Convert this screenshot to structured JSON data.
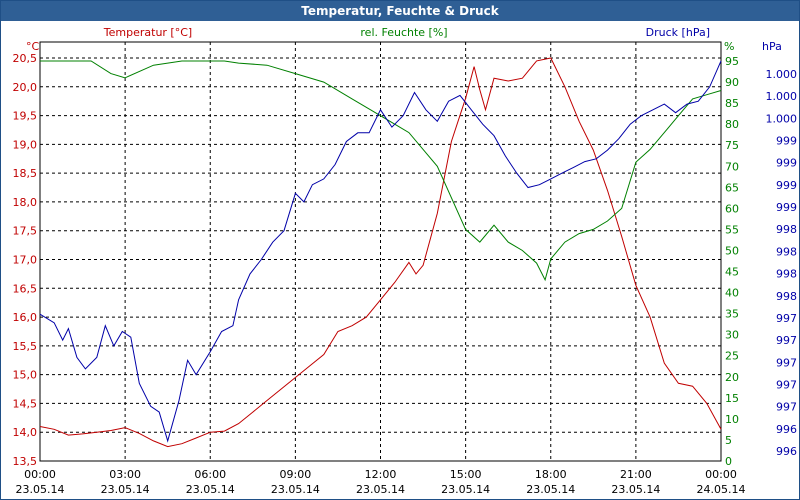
{
  "window": {
    "title": "Temperatur, Feuchte & Druck"
  },
  "colors": {
    "temperature": "#c00000",
    "humidity": "#008000",
    "pressure": "#0000a8",
    "title_bar": "#2f5f95"
  },
  "chart_data": {
    "type": "line",
    "title": "Temperatur, Feuchte & Druck",
    "grid": true,
    "x_ticks": [
      {
        "time": "00:00",
        "date": "23.05.14"
      },
      {
        "time": "03:00",
        "date": "23.05.14"
      },
      {
        "time": "06:00",
        "date": "23.05.14"
      },
      {
        "time": "09:00",
        "date": "23.05.14"
      },
      {
        "time": "12:00",
        "date": "23.05.14"
      },
      {
        "time": "15:00",
        "date": "23.05.14"
      },
      {
        "time": "18:00",
        "date": "23.05.14"
      },
      {
        "time": "21:00",
        "date": "23.05.14"
      },
      {
        "time": "00:00",
        "date": "24.05.14"
      }
    ],
    "xlim_hours": [
      0,
      24
    ],
    "axes": {
      "temperature": {
        "label": "Temperatur [°C]",
        "unit": "°C",
        "ylim": [
          13.5,
          20.5
        ],
        "ticks": [
          "13,5",
          "14,0",
          "14,5",
          "15,0",
          "15,5",
          "16,0",
          "16,5",
          "17,0",
          "17,5",
          "18,0",
          "18,5",
          "19,0",
          "19,5",
          "20,0",
          "20,5"
        ]
      },
      "humidity": {
        "label": "rel. Feuchte [%]",
        "unit": "%",
        "ylim": [
          0,
          95
        ],
        "ticks": [
          "0",
          "5",
          "10",
          "15",
          "20",
          "25",
          "30",
          "35",
          "40",
          "45",
          "50",
          "55",
          "60",
          "65",
          "70",
          "75",
          "80",
          "85",
          "90",
          "95"
        ]
      },
      "pressure": {
        "label": "Druck [hPa]",
        "unit": "hPa",
        "ticks": [
          "996",
          "996",
          "997",
          "997",
          "997",
          "997",
          "997",
          "998",
          "998",
          "998",
          "998",
          "999",
          "999",
          "999",
          "999",
          "1.000",
          "1.000",
          "1.000"
        ]
      }
    },
    "series": [
      {
        "name": "Temperatur [°C]",
        "axis": "temperature",
        "values": [
          [
            0,
            14.1
          ],
          [
            0.5,
            14.05
          ],
          [
            1,
            13.95
          ],
          [
            1.5,
            13.97
          ],
          [
            2,
            14.0
          ],
          [
            2.5,
            14.03
          ],
          [
            3,
            14.08
          ],
          [
            3.5,
            13.98
          ],
          [
            4,
            13.85
          ],
          [
            4.5,
            13.75
          ],
          [
            5,
            13.8
          ],
          [
            5.5,
            13.9
          ],
          [
            6,
            14.0
          ],
          [
            6.5,
            14.02
          ],
          [
            7,
            14.15
          ],
          [
            7.5,
            14.35
          ],
          [
            8,
            14.55
          ],
          [
            8.5,
            14.75
          ],
          [
            9,
            14.95
          ],
          [
            9.5,
            15.15
          ],
          [
            10,
            15.35
          ],
          [
            10.5,
            15.75
          ],
          [
            11,
            15.85
          ],
          [
            11.5,
            16.0
          ],
          [
            12,
            16.3
          ],
          [
            12.5,
            16.6
          ],
          [
            13,
            16.95
          ],
          [
            13.25,
            16.75
          ],
          [
            13.5,
            16.9
          ],
          [
            14,
            17.8
          ],
          [
            14.5,
            19.05
          ],
          [
            15,
            19.8
          ],
          [
            15.3,
            20.35
          ],
          [
            15.5,
            19.95
          ],
          [
            15.7,
            19.6
          ],
          [
            16,
            20.15
          ],
          [
            16.5,
            20.1
          ],
          [
            17,
            20.15
          ],
          [
            17.5,
            20.45
          ],
          [
            18,
            20.5
          ],
          [
            18.5,
            20.0
          ],
          [
            19,
            19.4
          ],
          [
            19.5,
            18.9
          ],
          [
            20,
            18.2
          ],
          [
            20.5,
            17.4
          ],
          [
            21,
            16.55
          ],
          [
            21.5,
            16.0
          ],
          [
            22,
            15.2
          ],
          [
            22.5,
            14.85
          ],
          [
            23,
            14.8
          ],
          [
            23.5,
            14.5
          ],
          [
            24,
            14.05
          ]
        ]
      },
      {
        "name": "rel. Feuchte [%]",
        "axis": "humidity",
        "values": [
          [
            0,
            95
          ],
          [
            1,
            95
          ],
          [
            1.8,
            95
          ],
          [
            2.5,
            92
          ],
          [
            3,
            91
          ],
          [
            4,
            94
          ],
          [
            5,
            95
          ],
          [
            6,
            95
          ],
          [
            6.5,
            95
          ],
          [
            7,
            94.5
          ],
          [
            8,
            94
          ],
          [
            9,
            92
          ],
          [
            10,
            90
          ],
          [
            11,
            86
          ],
          [
            12,
            82
          ],
          [
            13,
            78
          ],
          [
            14,
            70
          ],
          [
            15,
            55
          ],
          [
            15.5,
            52
          ],
          [
            16,
            56
          ],
          [
            16.5,
            52
          ],
          [
            17,
            50
          ],
          [
            17.5,
            47
          ],
          [
            17.8,
            43
          ],
          [
            18,
            48
          ],
          [
            18.5,
            52
          ],
          [
            19,
            54
          ],
          [
            19.5,
            55
          ],
          [
            20,
            57
          ],
          [
            20.5,
            60
          ],
          [
            21,
            71
          ],
          [
            21.5,
            74
          ],
          [
            22,
            78
          ],
          [
            22.5,
            82
          ],
          [
            23,
            86
          ],
          [
            23.5,
            87
          ],
          [
            24,
            88
          ]
        ]
      },
      {
        "name": "Druck [hPa]",
        "axis": "pressure",
        "values": [
          [
            0,
            16.05
          ],
          [
            0.5,
            15.9
          ],
          [
            0.8,
            15.6
          ],
          [
            1,
            15.8
          ],
          [
            1.3,
            15.3
          ],
          [
            1.6,
            15.1
          ],
          [
            2,
            15.3
          ],
          [
            2.3,
            15.85
          ],
          [
            2.6,
            15.5
          ],
          [
            2.9,
            15.75
          ],
          [
            3.2,
            15.65
          ],
          [
            3.5,
            14.85
          ],
          [
            3.9,
            14.45
          ],
          [
            4.2,
            14.35
          ],
          [
            4.5,
            13.85
          ],
          [
            4.9,
            14.55
          ],
          [
            5.2,
            15.25
          ],
          [
            5.5,
            15.0
          ],
          [
            6,
            15.4
          ],
          [
            6.4,
            15.75
          ],
          [
            6.8,
            15.85
          ],
          [
            7,
            16.3
          ],
          [
            7.4,
            16.75
          ],
          [
            7.8,
            17.0
          ],
          [
            8.2,
            17.3
          ],
          [
            8.6,
            17.5
          ],
          [
            9,
            18.15
          ],
          [
            9.3,
            18.0
          ],
          [
            9.6,
            18.3
          ],
          [
            10,
            18.4
          ],
          [
            10.4,
            18.65
          ],
          [
            10.8,
            19.05
          ],
          [
            11.2,
            19.2
          ],
          [
            11.6,
            19.2
          ],
          [
            12,
            19.6
          ],
          [
            12.4,
            19.3
          ],
          [
            12.8,
            19.5
          ],
          [
            13.2,
            19.9
          ],
          [
            13.6,
            19.6
          ],
          [
            14,
            19.4
          ],
          [
            14.4,
            19.75
          ],
          [
            14.8,
            19.85
          ],
          [
            15.2,
            19.6
          ],
          [
            15.6,
            19.35
          ],
          [
            16,
            19.15
          ],
          [
            16.4,
            18.8
          ],
          [
            16.8,
            18.5
          ],
          [
            17.2,
            18.25
          ],
          [
            17.6,
            18.3
          ],
          [
            18,
            18.4
          ],
          [
            18.4,
            18.5
          ],
          [
            18.8,
            18.6
          ],
          [
            19.2,
            18.7
          ],
          [
            19.6,
            18.75
          ],
          [
            20,
            18.9
          ],
          [
            20.4,
            19.1
          ],
          [
            20.8,
            19.35
          ],
          [
            21.2,
            19.5
          ],
          [
            21.6,
            19.6
          ],
          [
            22,
            19.7
          ],
          [
            22.4,
            19.55
          ],
          [
            22.8,
            19.7
          ],
          [
            23.2,
            19.75
          ],
          [
            23.6,
            20.0
          ],
          [
            24,
            20.45
          ]
        ]
      }
    ]
  }
}
